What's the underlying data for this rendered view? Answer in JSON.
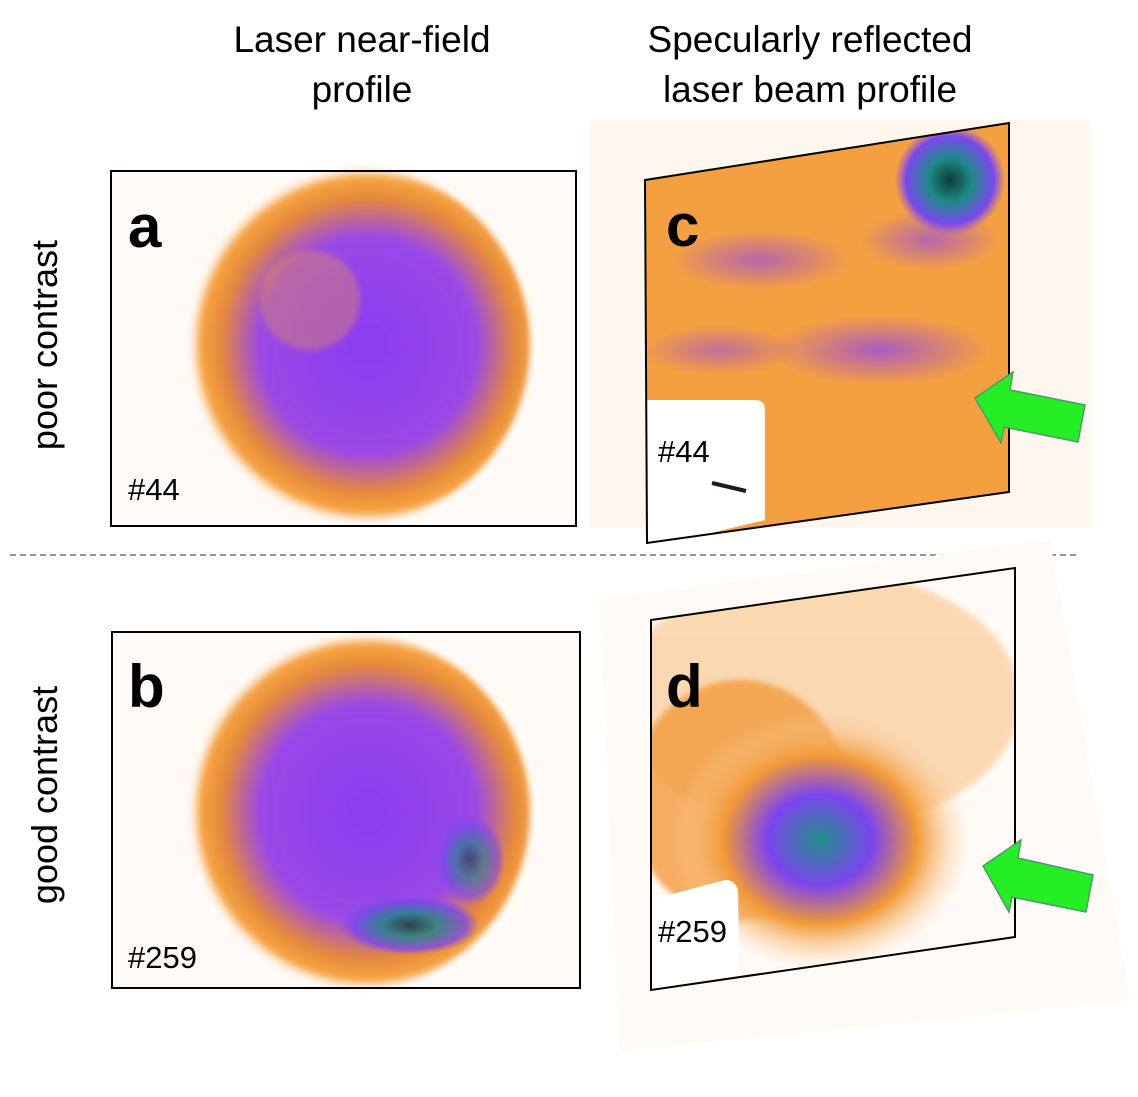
{
  "columns": [
    {
      "title_lines": [
        "Laser near-field",
        "profile"
      ]
    },
    {
      "title_lines": [
        "Specularly reflected",
        "laser beam profile"
      ]
    }
  ],
  "rows": [
    "poor contrast",
    "good contrast"
  ],
  "panels": [
    {
      "letter": "a",
      "shot": "#44"
    },
    {
      "letter": "b",
      "shot": "#259"
    },
    {
      "letter": "c",
      "shot": "#44"
    },
    {
      "letter": "d",
      "shot": "#259"
    }
  ]
}
